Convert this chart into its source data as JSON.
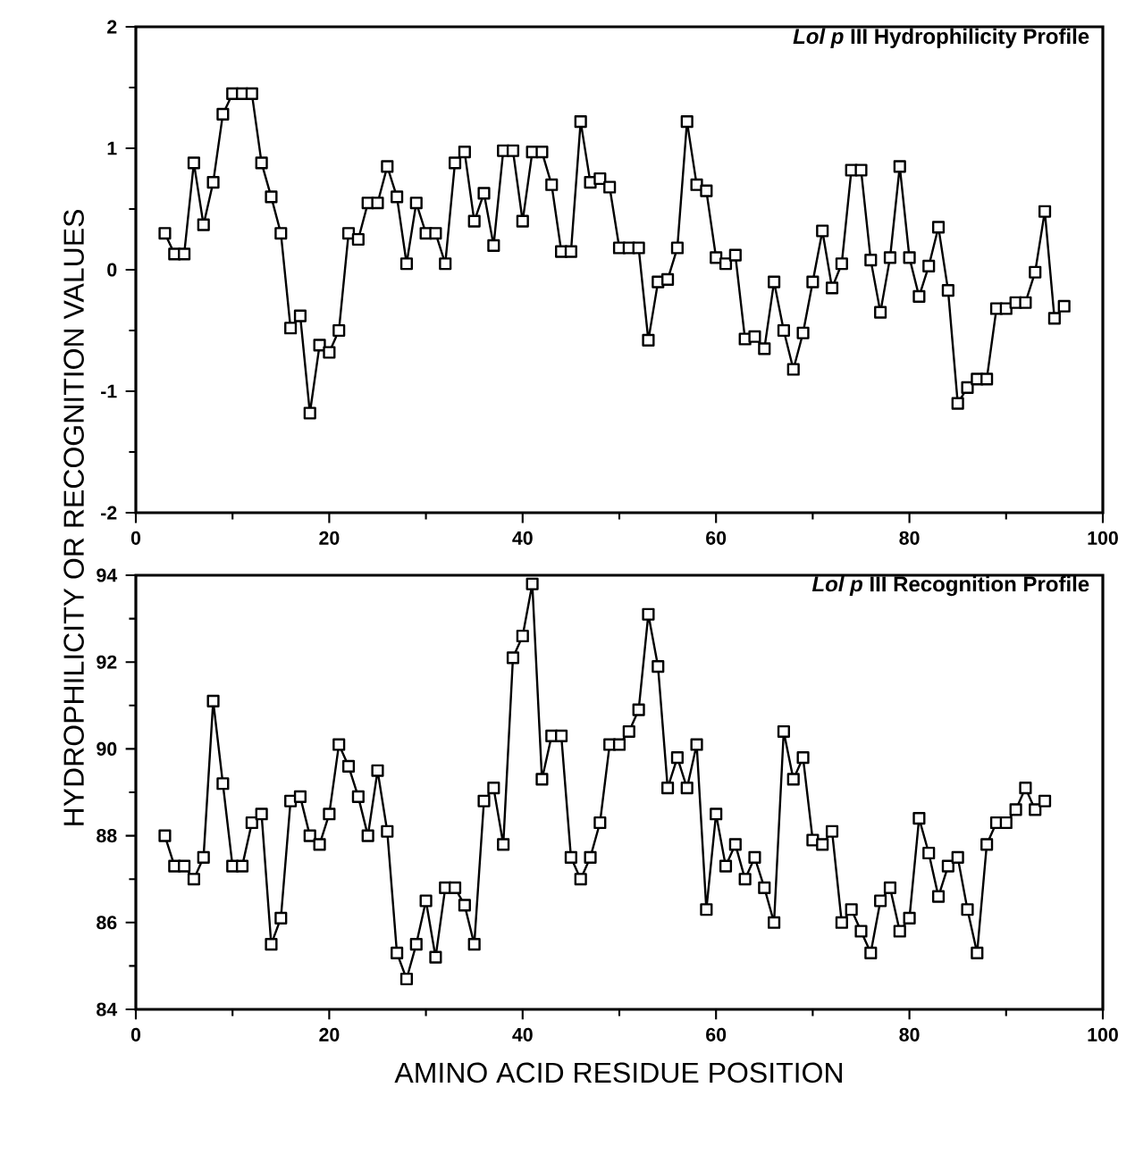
{
  "chart_data": [
    {
      "type": "line",
      "title": "*Lol p* III Hydrophilicity Profile",
      "ylabel": "HYDROPHILICITY OR RECOGNITION VALUES",
      "marker": "square",
      "xlim": [
        0,
        100
      ],
      "xticks": [
        0,
        20,
        40,
        60,
        80,
        100
      ],
      "ylim": [
        -2,
        2
      ],
      "yticks": [
        -2,
        -1,
        0,
        1,
        2
      ],
      "x": [
        3,
        4,
        5,
        6,
        7,
        8,
        9,
        10,
        11,
        12,
        13,
        14,
        15,
        16,
        17,
        18,
        19,
        20,
        21,
        22,
        23,
        24,
        25,
        26,
        27,
        28,
        29,
        30,
        31,
        32,
        33,
        34,
        35,
        36,
        37,
        38,
        39,
        40,
        41,
        42,
        43,
        44,
        45,
        46,
        47,
        48,
        49,
        50,
        51,
        52,
        53,
        54,
        55,
        56,
        57,
        58,
        59,
        60,
        61,
        62,
        63,
        64,
        65,
        66,
        67,
        68,
        69,
        70,
        71,
        72,
        73,
        74,
        75,
        76,
        77,
        78,
        79,
        80,
        81,
        82,
        83,
        84,
        85,
        86,
        87,
        88,
        89,
        90,
        91,
        92,
        93,
        94,
        95,
        96
      ],
      "series": [
        {
          "color": "#000000",
          "values": [
            0.3,
            0.13,
            0.13,
            0.88,
            0.37,
            0.72,
            1.28,
            1.45,
            1.45,
            1.45,
            0.88,
            0.6,
            0.3,
            -0.48,
            -0.38,
            -1.18,
            -0.62,
            -0.68,
            -0.5,
            0.3,
            0.25,
            0.55,
            0.55,
            0.85,
            0.6,
            0.05,
            0.55,
            0.3,
            0.3,
            0.05,
            0.88,
            0.97,
            0.4,
            0.63,
            0.2,
            0.98,
            0.98,
            0.4,
            0.97,
            0.97,
            0.7,
            0.15,
            0.15,
            1.22,
            0.72,
            0.75,
            0.68,
            0.18,
            0.18,
            0.18,
            -0.58,
            -0.1,
            -0.08,
            0.18,
            1.22,
            0.7,
            0.65,
            0.1,
            0.05,
            0.12,
            -0.57,
            -0.55,
            -0.65,
            -0.1,
            -0.5,
            -0.82,
            -0.52,
            -0.1,
            0.32,
            -0.15,
            0.05,
            0.82,
            0.82,
            0.08,
            -0.35,
            0.1,
            0.85,
            0.1,
            -0.22,
            0.03,
            0.35,
            -0.17,
            -1.1,
            -0.97,
            -0.9,
            -0.9,
            -0.32,
            -0.32,
            -0.27,
            -0.27,
            -0.02,
            0.48,
            -0.4,
            -0.3
          ]
        }
      ]
    },
    {
      "type": "line",
      "title": "*Lol p* III Recognition Profile",
      "xlabel": "AMINO ACID RESIDUE POSITION",
      "marker": "square",
      "xlim": [
        0,
        100
      ],
      "xticks": [
        0,
        20,
        40,
        60,
        80,
        100
      ],
      "ylim": [
        84,
        94
      ],
      "yticks": [
        84,
        86,
        88,
        90,
        92,
        94
      ],
      "x": [
        3,
        4,
        5,
        6,
        7,
        8,
        9,
        10,
        11,
        12,
        13,
        14,
        15,
        16,
        17,
        18,
        19,
        20,
        21,
        22,
        23,
        24,
        25,
        26,
        27,
        28,
        29,
        30,
        31,
        32,
        33,
        34,
        35,
        36,
        37,
        38,
        39,
        40,
        41,
        42,
        43,
        44,
        45,
        46,
        47,
        48,
        49,
        50,
        51,
        52,
        53,
        54,
        55,
        56,
        57,
        58,
        59,
        60,
        61,
        62,
        63,
        64,
        65,
        66,
        67,
        68,
        69,
        70,
        71,
        72,
        73,
        74,
        75,
        76,
        77,
        78,
        79,
        80,
        81,
        82,
        83,
        84,
        85,
        86,
        87,
        88,
        89,
        90,
        91,
        92,
        93,
        94
      ],
      "series": [
        {
          "color": "#000000",
          "values": [
            88.0,
            87.3,
            87.3,
            87.0,
            87.5,
            91.1,
            89.2,
            87.3,
            87.3,
            88.3,
            88.5,
            85.5,
            86.1,
            88.8,
            88.9,
            88.0,
            87.8,
            88.5,
            90.1,
            89.6,
            88.9,
            88.0,
            89.5,
            88.1,
            85.3,
            84.7,
            85.5,
            86.5,
            85.2,
            86.8,
            86.8,
            86.4,
            85.5,
            88.8,
            89.1,
            87.8,
            92.1,
            92.6,
            93.8,
            89.3,
            90.3,
            90.3,
            87.5,
            87.0,
            87.5,
            88.3,
            90.1,
            90.1,
            90.4,
            90.9,
            93.1,
            91.9,
            89.1,
            89.8,
            89.1,
            90.1,
            86.3,
            88.5,
            87.3,
            87.8,
            87.0,
            87.5,
            86.8,
            86.0,
            90.4,
            89.3,
            89.8,
            87.9,
            87.8,
            88.1,
            86.0,
            86.3,
            85.8,
            85.3,
            86.5,
            86.8,
            85.8,
            86.1,
            88.4,
            87.6,
            86.6,
            87.3,
            87.5,
            86.3,
            85.3,
            87.8,
            88.3,
            88.3,
            88.6,
            89.1,
            88.6,
            88.8
          ]
        }
      ]
    }
  ]
}
